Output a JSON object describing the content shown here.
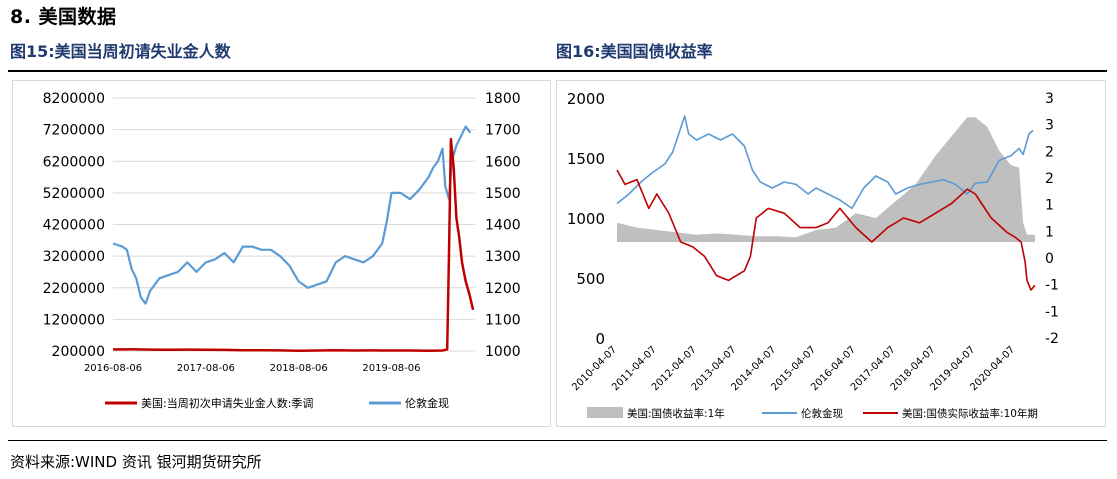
{
  "section_title": "8.   美国数据",
  "chart_titles": [
    "图15:美国当周初请失业金人数",
    "图16:美国国债收益率"
  ],
  "source": "资料来源:WIND 资讯    银河期货研究所",
  "colors": {
    "red": "#c00000",
    "blue": "#5b9bd5",
    "gray": "#bfbfbf",
    "title_blue": "#1f3a6e",
    "grid": "#d9d9d9"
  },
  "chart_data": [
    {
      "type": "line",
      "title": "图15:美国当周初请失业金人数",
      "x_ticks": [
        "2016-08-06",
        "2017-08-06",
        "2018-08-06",
        "2019-08-06"
      ],
      "y_left_ticks": [
        "8200000",
        "7200000",
        "6200000",
        "5200000",
        "4200000",
        "3200000",
        "2200000",
        "1200000",
        "200000"
      ],
      "y_right_ticks": [
        "1800",
        "1700",
        "1600",
        "1500",
        "1400",
        "1300",
        "1200",
        "1100",
        "1000"
      ],
      "y_left_range": [
        200000,
        8200000
      ],
      "y_right_range": [
        1000,
        1800
      ],
      "x_range": [
        2016.6,
        2020.5
      ],
      "legend": [
        "美国:当周初次申请失业金人数:季调",
        "伦敦金现"
      ],
      "series": [
        {
          "name": "美国:当周初次申请失业金人数:季调",
          "axis": "left",
          "color": "red",
          "x": [
            2016.6,
            2016.8,
            2017.0,
            2017.2,
            2017.4,
            2017.6,
            2017.8,
            2018.0,
            2018.2,
            2018.4,
            2018.6,
            2018.8,
            2019.0,
            2019.2,
            2019.4,
            2019.6,
            2019.8,
            2020.0,
            2020.15,
            2020.2,
            2020.22,
            2020.24,
            2020.27,
            2020.3,
            2020.33,
            2020.36,
            2020.4,
            2020.44,
            2020.48
          ],
          "values": [
            250000,
            255000,
            245000,
            240000,
            245000,
            240000,
            235000,
            225000,
            225000,
            220000,
            210000,
            215000,
            225000,
            215000,
            220000,
            215000,
            215000,
            210000,
            215000,
            250000,
            3300000,
            6900000,
            6000000,
            4400000,
            3800000,
            3000000,
            2400000,
            2000000,
            1500000
          ]
        },
        {
          "name": "伦敦金现",
          "axis": "right",
          "color": "blue",
          "x": [
            2016.6,
            2016.7,
            2016.75,
            2016.8,
            2016.85,
            2016.9,
            2016.95,
            2017.0,
            2017.1,
            2017.2,
            2017.3,
            2017.4,
            2017.5,
            2017.6,
            2017.7,
            2017.8,
            2017.9,
            2018.0,
            2018.1,
            2018.2,
            2018.3,
            2018.4,
            2018.5,
            2018.6,
            2018.7,
            2018.8,
            2018.9,
            2019.0,
            2019.1,
            2019.2,
            2019.3,
            2019.4,
            2019.5,
            2019.55,
            2019.6,
            2019.7,
            2019.8,
            2019.9,
            2020.0,
            2020.05,
            2020.1,
            2020.15,
            2020.18,
            2020.22,
            2020.25,
            2020.3,
            2020.35,
            2020.4,
            2020.45
          ],
          "values": [
            1340,
            1330,
            1320,
            1260,
            1230,
            1170,
            1150,
            1190,
            1230,
            1240,
            1250,
            1280,
            1250,
            1280,
            1290,
            1310,
            1280,
            1330,
            1330,
            1320,
            1320,
            1300,
            1270,
            1220,
            1200,
            1210,
            1220,
            1280,
            1300,
            1290,
            1280,
            1300,
            1340,
            1410,
            1500,
            1500,
            1480,
            1510,
            1550,
            1580,
            1600,
            1640,
            1520,
            1480,
            1600,
            1650,
            1680,
            1710,
            1690
          ]
        }
      ]
    },
    {
      "type": "line",
      "title": "图16:美国国债收益率",
      "x_ticks": [
        "2010-04-07",
        "2011-04-07",
        "2012-04-07",
        "2013-04-07",
        "2014-04-07",
        "2015-04-07",
        "2016-04-07",
        "2017-04-07",
        "2018-04-07",
        "2019-04-07",
        "2020-04-07"
      ],
      "y_left_ticks": [
        "2000",
        "1500",
        "1000",
        "500",
        "0"
      ],
      "y_right_ticks": [
        "3",
        "3",
        "2",
        "2",
        "1",
        "1",
        "0",
        "-1",
        "-1",
        "-2"
      ],
      "y_left_range": [
        0,
        2000
      ],
      "y_right_range": [
        -2,
        3
      ],
      "x_range": [
        2010.0,
        2020.5
      ],
      "legend": [
        "美国:国债收益率:1年",
        "伦敦金现",
        "美国:国债实际收益率:10年期"
      ],
      "series": [
        {
          "name": "美国:国债收益率:1年",
          "axis": "right",
          "type": "area",
          "color": "gray",
          "x": [
            2010.0,
            2010.5,
            2011.0,
            2011.5,
            2012.0,
            2012.5,
            2013.0,
            2013.5,
            2014.0,
            2014.5,
            2015.0,
            2015.5,
            2016.0,
            2016.5,
            2017.0,
            2017.5,
            2018.0,
            2018.5,
            2018.8,
            2019.0,
            2019.3,
            2019.6,
            2019.9,
            2020.1,
            2020.2,
            2020.3,
            2020.4,
            2020.5
          ],
          "values": [
            0.4,
            0.3,
            0.25,
            0.2,
            0.15,
            0.18,
            0.15,
            0.12,
            0.12,
            0.1,
            0.25,
            0.3,
            0.6,
            0.5,
            0.85,
            1.2,
            1.8,
            2.3,
            2.6,
            2.6,
            2.4,
            1.9,
            1.6,
            1.55,
            0.4,
            0.15,
            0.15,
            0.15
          ]
        },
        {
          "name": "伦敦金现",
          "axis": "left",
          "color": "blue",
          "x": [
            2010.0,
            2010.3,
            2010.6,
            2010.9,
            2011.2,
            2011.4,
            2011.6,
            2011.7,
            2011.8,
            2012.0,
            2012.3,
            2012.6,
            2012.9,
            2013.2,
            2013.4,
            2013.6,
            2013.9,
            2014.2,
            2014.5,
            2014.8,
            2015.0,
            2015.3,
            2015.6,
            2015.9,
            2016.2,
            2016.5,
            2016.8,
            2017.0,
            2017.3,
            2017.6,
            2017.9,
            2018.2,
            2018.5,
            2018.8,
            2019.0,
            2019.3,
            2019.6,
            2019.9,
            2020.1,
            2020.2,
            2020.35,
            2020.45
          ],
          "values": [
            1120,
            1200,
            1300,
            1380,
            1450,
            1550,
            1750,
            1850,
            1700,
            1650,
            1700,
            1650,
            1700,
            1600,
            1400,
            1300,
            1250,
            1300,
            1280,
            1200,
            1250,
            1200,
            1150,
            1080,
            1250,
            1350,
            1300,
            1200,
            1250,
            1280,
            1300,
            1320,
            1280,
            1200,
            1290,
            1300,
            1480,
            1520,
            1580,
            1530,
            1700,
            1730
          ]
        },
        {
          "name": "美国:国债实际收益率:10年期",
          "axis": "right",
          "color": "red",
          "x": [
            2010.0,
            2010.2,
            2010.5,
            2010.8,
            2011.0,
            2011.3,
            2011.6,
            2011.9,
            2012.2,
            2012.5,
            2012.8,
            2013.0,
            2013.2,
            2013.35,
            2013.5,
            2013.8,
            2014.2,
            2014.6,
            2015.0,
            2015.3,
            2015.6,
            2016.0,
            2016.4,
            2016.8,
            2017.2,
            2017.6,
            2018.0,
            2018.4,
            2018.8,
            2019.0,
            2019.4,
            2019.8,
            2020.0,
            2020.15,
            2020.25,
            2020.3,
            2020.4,
            2020.5
          ],
          "values": [
            1.5,
            1.2,
            1.3,
            0.7,
            1.0,
            0.6,
            0.0,
            -0.1,
            -0.3,
            -0.7,
            -0.8,
            -0.7,
            -0.6,
            -0.3,
            0.5,
            0.7,
            0.6,
            0.3,
            0.3,
            0.4,
            0.7,
            0.3,
            0.0,
            0.3,
            0.5,
            0.4,
            0.6,
            0.8,
            1.1,
            1.0,
            0.5,
            0.2,
            0.1,
            0.0,
            -0.4,
            -0.8,
            -1.0,
            -0.9
          ]
        }
      ]
    }
  ]
}
